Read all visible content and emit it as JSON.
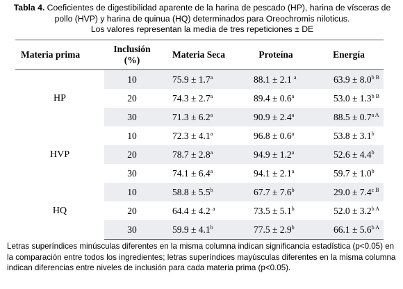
{
  "caption": {
    "label": "Tabla 4.",
    "text": "Coeficientes de digestibilidad aparente de la harina de pescado (HP), harina de vísceras de pollo (HVP) y harina de quinua (HQ) determinados para Oreochromis niloticus.",
    "subtext": "Los valores representan la media de tres repeticiones ± DE"
  },
  "headers": {
    "materia_prima": "Materia prima",
    "inclusion": "Inclusión",
    "inclusion_unit": "(%)",
    "materia_seca": "Materia Seca",
    "proteina": "Proteína",
    "energia": "Energía"
  },
  "groups": [
    {
      "name": "HP",
      "rows": [
        {
          "inclusion": "10",
          "ms": "75.9 ± 1.7",
          "ms_sup": "a",
          "pr": "88.1 ± 2.1 ",
          "pr_sup": "a",
          "en": "63.9 ± 8.0",
          "en_sup": "b B"
        },
        {
          "inclusion": "20",
          "ms": "74.3 ± 2.7",
          "ms_sup": "a",
          "pr": "89.4 ± 0.6",
          "pr_sup": "a",
          "en": "53.0 ± 1.3",
          "en_sup": "b B"
        },
        {
          "inclusion": "30",
          "ms": "71.3 ± 6.2",
          "ms_sup": "a",
          "pr": "90.9 ± 2.4",
          "pr_sup": "a",
          "en": "88.5 ± 0.7",
          "en_sup": "a A"
        }
      ]
    },
    {
      "name": "HVP",
      "rows": [
        {
          "inclusion": "10",
          "ms": "72.3 ± 4.1",
          "ms_sup": "a",
          "pr": "96.8 ± 0.6",
          "pr_sup": "a",
          "en": "53.8 ± 3.1",
          "en_sup": "b"
        },
        {
          "inclusion": "20",
          "ms": "78.7 ± 2.8",
          "ms_sup": "a",
          "pr": "94.9 ± 1.2",
          "pr_sup": "a",
          "en": "52.6 ± 4.4",
          "en_sup": "b"
        },
        {
          "inclusion": "30",
          "ms": "74.1 ± 6.4",
          "ms_sup": "a",
          "pr": "94.1 ± 2.1",
          "pr_sup": "a",
          "en": "59.7 ± 1.0",
          "en_sup": "b"
        }
      ]
    },
    {
      "name": "HQ",
      "rows": [
        {
          "inclusion": "10",
          "ms": "58.8 ± 5.5",
          "ms_sup": "b",
          "pr": "67.7 ± 7.6",
          "pr_sup": "b",
          "en": "29.0 ± 7.4",
          "en_sup": "c B"
        },
        {
          "inclusion": "20",
          "ms": "64.4 ± 4.2 ",
          "ms_sup": "a",
          "pr": "73.5 ± 5.1",
          "pr_sup": "b",
          "en": "52.0 ± 3.2",
          "en_sup": "b A"
        },
        {
          "inclusion": "30",
          "ms": "59.9 ± 4.1",
          "ms_sup": "b",
          "pr": "77.5 ± 2.9",
          "pr_sup": "b",
          "en": "66.1 ± 5.6",
          "en_sup": "b A"
        }
      ]
    }
  ],
  "footnote": "Letras superíndices minúsculas diferentes en la misma columna indican significancia estadística (p<0.05) en la comparación entre todos los ingredientes; letras superíndices mayúsculas diferentes en la misma columna indican diferencias entre niveles de inclusión  para cada materia prima (p<0.05).",
  "colors": {
    "row_shade": "#ecedf1",
    "rule": "#555555"
  }
}
